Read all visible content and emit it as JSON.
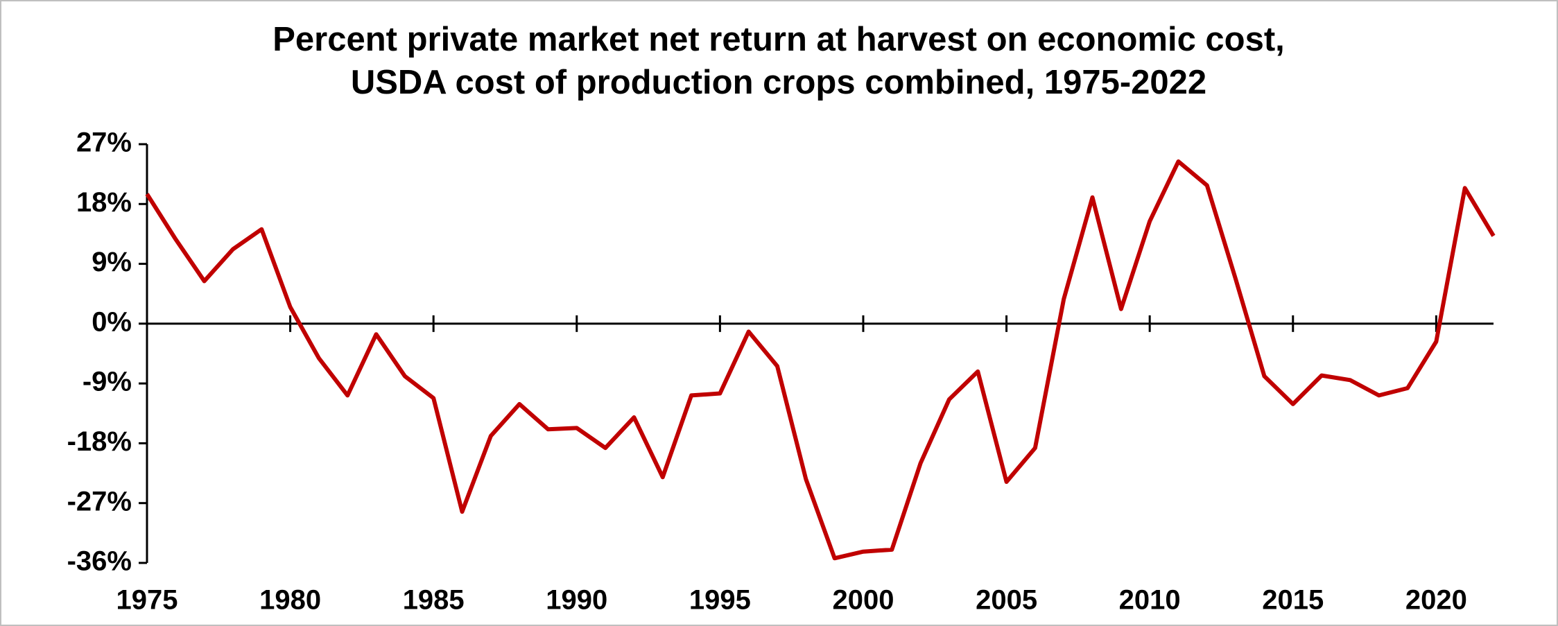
{
  "chart_data": {
    "type": "line",
    "title": [
      "Percent private market net return at harvest on economic cost,",
      "USDA cost of production crops combined, 1975-2022"
    ],
    "x": [
      1975,
      1976,
      1977,
      1978,
      1979,
      1980,
      1981,
      1982,
      1983,
      1984,
      1985,
      1986,
      1987,
      1988,
      1989,
      1990,
      1991,
      1992,
      1993,
      1994,
      1995,
      1996,
      1997,
      1998,
      1999,
      2000,
      2001,
      2002,
      2003,
      2004,
      2005,
      2006,
      2007,
      2008,
      2009,
      2010,
      2011,
      2012,
      2013,
      2014,
      2015,
      2016,
      2017,
      2018,
      2019,
      2020,
      2021,
      2022
    ],
    "series": [
      {
        "color": "#c00000",
        "values": [
          19.5,
          12.7,
          6.4,
          11.2,
          14.2,
          2.5,
          -5.2,
          -10.8,
          -1.6,
          -7.9,
          -11.2,
          -28.3,
          -16.9,
          -12.1,
          -15.9,
          -15.7,
          -18.7,
          -14.1,
          -23.1,
          -10.8,
          -10.5,
          -1.2,
          -6.4,
          -23.4,
          -35.3,
          -34.3,
          -34.0,
          -21.0,
          -11.4,
          -7.2,
          -23.8,
          -18.7,
          3.7,
          19.0,
          2.2,
          15.4,
          24.4,
          20.8,
          6.7,
          -7.9,
          -12.1,
          -7.8,
          -8.5,
          -10.8,
          -9.7,
          -2.7,
          20.4,
          13.2
        ]
      }
    ],
    "xlim": [
      1975,
      2022
    ],
    "xticks": [
      1975,
      1980,
      1985,
      1990,
      1995,
      2000,
      2005,
      2010,
      2015,
      2020
    ],
    "ylim": [
      -36,
      27
    ],
    "yticks": [
      {
        "value": -36,
        "label": "-36%"
      },
      {
        "value": -27,
        "label": "-27%"
      },
      {
        "value": -18,
        "label": "-18%"
      },
      {
        "value": -9,
        "label": "-9%"
      },
      {
        "value": 0,
        "label": "0%"
      },
      {
        "value": 9,
        "label": "9%"
      },
      {
        "value": 18,
        "label": "18%"
      },
      {
        "value": 27,
        "label": "27%"
      }
    ]
  }
}
